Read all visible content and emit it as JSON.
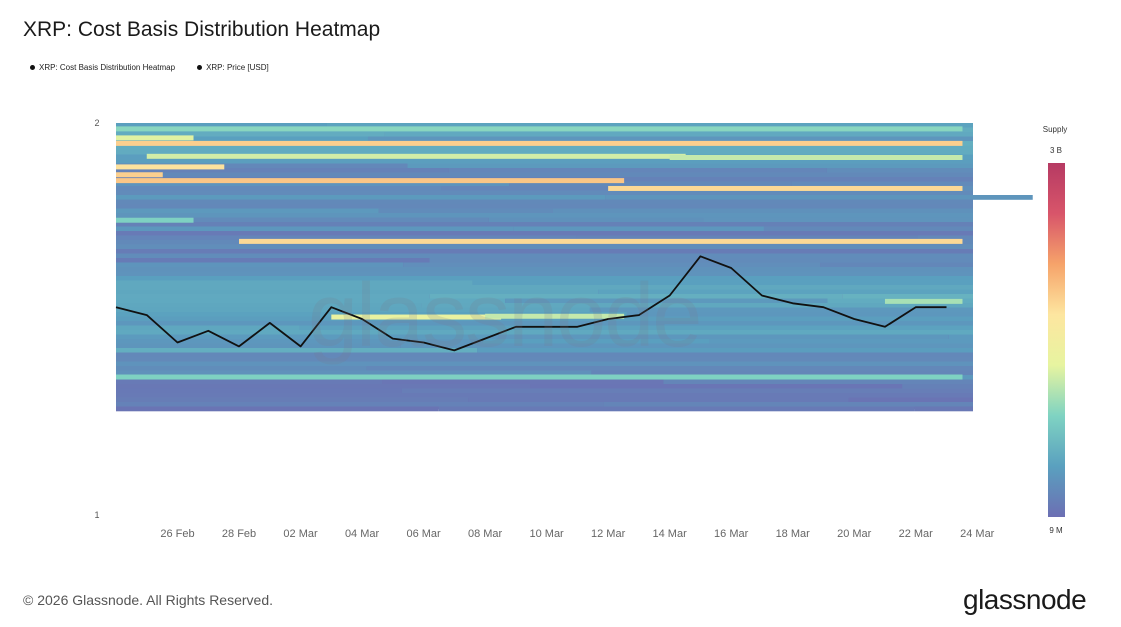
{
  "header": {
    "title": "XRP: Cost Basis Distribution Heatmap"
  },
  "legend": {
    "items": [
      {
        "label": "XRP: Cost Basis Distribution Heatmap"
      },
      {
        "label": "XRP: Price [USD]"
      }
    ]
  },
  "colorbar": {
    "title": "Supply",
    "max_label": "3 B",
    "min_label": "9 M",
    "colors": [
      "#6c6fb3",
      "#5aa0bf",
      "#7fd3c2",
      "#e7f4a0",
      "#fde6a0",
      "#f6a36a",
      "#d8556a",
      "#b63a63"
    ]
  },
  "watermark": "glassnode",
  "footer": {
    "copyright": "© 2026 Glassnode. All Rights Reserved.",
    "logo": "glassnode"
  },
  "chart_data": {
    "type": "heatmap",
    "title": "XRP: Cost Basis Distribution Heatmap",
    "x_range": [
      "2026-02-24",
      "2026-03-25"
    ],
    "x_ticks": [
      "26 Feb",
      "28 Feb",
      "02 Mar",
      "04 Mar",
      "06 Mar",
      "08 Mar",
      "10 Mar",
      "12 Mar",
      "14 Mar",
      "16 Mar",
      "18 Mar",
      "20 Mar",
      "22 Mar",
      "24 Mar"
    ],
    "y_ticks": [
      "2",
      "1"
    ],
    "ylim": [
      1,
      2
    ],
    "heatmap_price_range": [
      1.27,
      2.0
    ],
    "background_color": "#6f6eb0",
    "bands": [
      {
        "y": 1.985,
        "from": "2026-02-24",
        "to": "2026-03-23",
        "level": 0.3
      },
      {
        "y": 1.962,
        "from": "2026-02-24",
        "to": "2026-02-26",
        "level": 0.42
      },
      {
        "y": 1.948,
        "from": "2026-02-24",
        "to": "2026-03-23",
        "level": 0.62
      },
      {
        "y": 1.915,
        "from": "2026-02-25",
        "to": "2026-03-14",
        "level": 0.4
      },
      {
        "y": 1.912,
        "from": "2026-03-14",
        "to": "2026-03-23",
        "level": 0.38
      },
      {
        "y": 1.888,
        "from": "2026-02-24",
        "to": "2026-02-27",
        "level": 0.58
      },
      {
        "y": 1.868,
        "from": "2026-02-24",
        "to": "2026-02-25",
        "level": 0.62
      },
      {
        "y": 1.853,
        "from": "2026-02-24",
        "to": "2026-03-12",
        "level": 0.64
      },
      {
        "y": 1.833,
        "from": "2026-03-12",
        "to": "2026-03-23",
        "level": 0.6
      },
      {
        "y": 1.752,
        "from": "2026-02-24",
        "to": "2026-02-26",
        "level": 0.28
      },
      {
        "y": 1.698,
        "from": "2026-02-28",
        "to": "2026-03-23",
        "level": 0.6
      },
      {
        "y": 1.545,
        "from": "2026-03-21",
        "to": "2026-03-23",
        "level": 0.34
      },
      {
        "y": 1.505,
        "from": "2026-03-03",
        "to": "2026-03-08",
        "level": 0.45
      },
      {
        "y": 1.507,
        "from": "2026-03-08",
        "to": "2026-03-12",
        "level": 0.38
      },
      {
        "y": 1.352,
        "from": "2026-02-24",
        "to": "2026-03-23",
        "level": 0.28
      }
    ],
    "series": [
      {
        "name": "XRP: Price [USD]",
        "x": [
          "2026-02-24",
          "2026-02-25",
          "2026-02-26",
          "2026-02-27",
          "2026-02-28",
          "2026-03-01",
          "2026-03-02",
          "2026-03-03",
          "2026-03-04",
          "2026-03-05",
          "2026-03-06",
          "2026-03-07",
          "2026-03-08",
          "2026-03-09",
          "2026-03-10",
          "2026-03-11",
          "2026-03-12",
          "2026-03-13",
          "2026-03-14",
          "2026-03-15",
          "2026-03-16",
          "2026-03-17",
          "2026-03-18",
          "2026-03-19",
          "2026-03-20",
          "2026-03-21",
          "2026-03-22",
          "2026-03-23"
        ],
        "values": [
          1.53,
          1.51,
          1.44,
          1.47,
          1.43,
          1.49,
          1.43,
          1.53,
          1.5,
          1.45,
          1.44,
          1.42,
          1.45,
          1.48,
          1.48,
          1.48,
          1.5,
          1.51,
          1.56,
          1.66,
          1.63,
          1.56,
          1.54,
          1.53,
          1.5,
          1.48,
          1.53,
          1.53
        ]
      }
    ]
  }
}
